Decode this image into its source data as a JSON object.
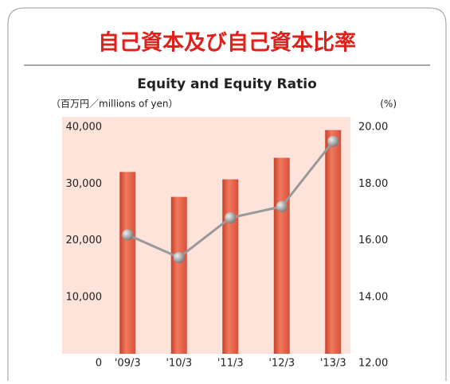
{
  "chart_data": {
    "type": "bar-line",
    "title": "自己資本及び自己資本比率",
    "subtitle": "Equity and Equity Ratio",
    "y_label": "（百万円／millions of yen）",
    "y2_label": "(%)",
    "categories": [
      "'09/3",
      "'10/3",
      "'11/3",
      "'12/3",
      "'13/3"
    ],
    "series": [
      {
        "name": "Equity",
        "color": "#ee5a40",
        "type": "bar",
        "values": [
          32100,
          27700,
          30800,
          34600,
          39500
        ]
      },
      {
        "name": "Equity Ratio",
        "color": "#999999",
        "type": "line",
        "axis": "y2",
        "values": [
          16.2,
          15.4,
          16.8,
          17.2,
          19.5
        ]
      }
    ],
    "ylim": [
      0,
      40000
    ],
    "yticks": [
      0,
      {
        "value": 10000,
        "label": "10,000"
      },
      {
        "value": 20000,
        "label": "20,000"
      },
      {
        "value": 30000,
        "label": "30,000"
      },
      {
        "value": 40000,
        "label": "40,000"
      }
    ],
    "y2lim": [
      12,
      20
    ],
    "y2ticks": [
      {
        "value": 12,
        "label": "12.00"
      },
      {
        "value": 14,
        "label": "14.00"
      },
      {
        "value": 16,
        "label": "16.00"
      },
      {
        "value": 18,
        "label": "18.00"
      },
      {
        "value": 20,
        "label": "20.00"
      }
    ]
  }
}
